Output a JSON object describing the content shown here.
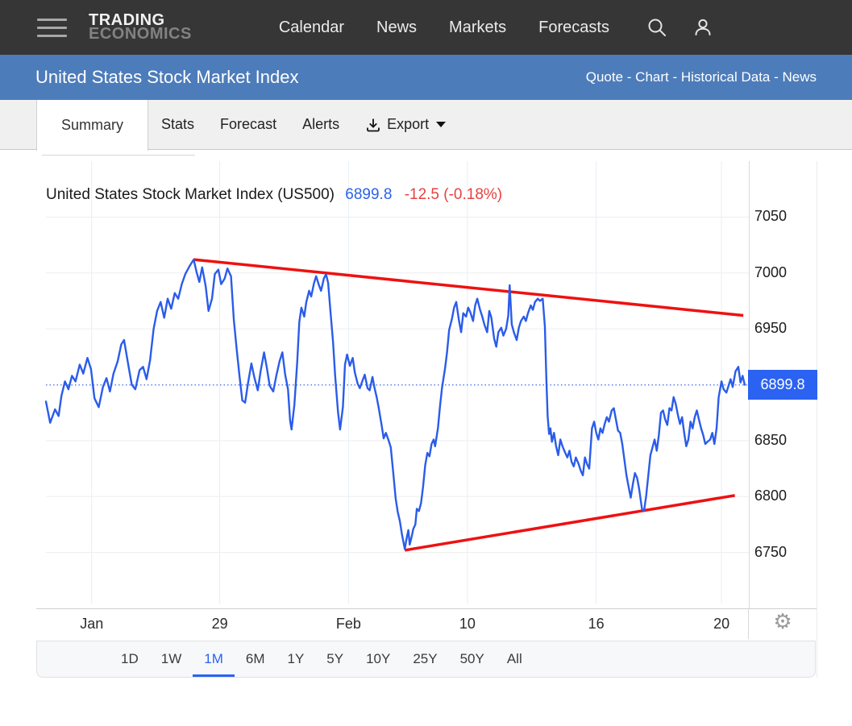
{
  "topbar": {
    "logo_line1": "TRADING",
    "logo_line2": "ECONOMICS",
    "nav_items": [
      "Calendar",
      "News",
      "Markets",
      "Forecasts"
    ]
  },
  "titlebar": {
    "title": "United States Stock Market Index",
    "links": "Quote - Chart - Historical Data - News"
  },
  "tabs": {
    "items": [
      "Summary",
      "Stats",
      "Forecast",
      "Alerts"
    ],
    "active": "Summary",
    "export_label": "Export"
  },
  "chart_header": {
    "name": "United States Stock Market Index (US500)",
    "price": "6899.8",
    "change": "-12.5 (-0.18%)"
  },
  "price_badge": "6899.8",
  "ranges": {
    "items": [
      "1D",
      "1W",
      "1M",
      "6M",
      "1Y",
      "5Y",
      "10Y",
      "25Y",
      "50Y",
      "All"
    ],
    "active": "1M"
  },
  "colors": {
    "line_blue": "#2a5cea",
    "badge_blue": "#2b62f2",
    "trend_red": "#ee1111",
    "dotted_blue": "#3f66ea",
    "grid_h": "#ededed",
    "grid_v": "#e7eef5",
    "plot_border": "#d9d9d9"
  },
  "chart_data": {
    "type": "line",
    "title": "United States Stock Market Index (US500)",
    "last_price": 6899.8,
    "change": -12.5,
    "change_pct": "-0.18%",
    "ylim": [
      6700,
      7100
    ],
    "y_ticks": [
      7050,
      7000,
      6950,
      6850,
      6800,
      6750
    ],
    "current_value_line": 6899.8,
    "grid": true,
    "legend": "none",
    "x_ticks": [
      {
        "label": "Jan",
        "f": 0.065
      },
      {
        "label": "29",
        "f": 0.247
      },
      {
        "label": "Feb",
        "f": 0.43
      },
      {
        "label": "10",
        "f": 0.599
      },
      {
        "label": "16",
        "f": 0.782
      },
      {
        "label": "20",
        "f": 0.96
      }
    ],
    "trendlines": [
      {
        "x1": 0.21,
        "v1": 7012,
        "x2": 0.991,
        "v2": 6962
      },
      {
        "x1": 0.51,
        "v1": 6752,
        "x2": 0.979,
        "v2": 6801
      }
    ],
    "series": [
      {
        "name": "US500",
        "points": [
          [
            0,
            6885
          ],
          [
            0.006,
            6866
          ],
          [
            0.013,
            6878
          ],
          [
            0.018,
            6872
          ],
          [
            0.022,
            6890
          ],
          [
            0.027,
            6903
          ],
          [
            0.032,
            6896
          ],
          [
            0.037,
            6908
          ],
          [
            0.042,
            6903
          ],
          [
            0.048,
            6918
          ],
          [
            0.053,
            6910
          ],
          [
            0.059,
            6924
          ],
          [
            0.064,
            6914
          ],
          [
            0.069,
            6888
          ],
          [
            0.075,
            6880
          ],
          [
            0.081,
            6898
          ],
          [
            0.086,
            6906
          ],
          [
            0.091,
            6894
          ],
          [
            0.096,
            6910
          ],
          [
            0.102,
            6921
          ],
          [
            0.107,
            6936
          ],
          [
            0.111,
            6940
          ],
          [
            0.117,
            6918
          ],
          [
            0.122,
            6900
          ],
          [
            0.127,
            6896
          ],
          [
            0.133,
            6913
          ],
          [
            0.138,
            6916
          ],
          [
            0.143,
            6905
          ],
          [
            0.148,
            6922
          ],
          [
            0.153,
            6950
          ],
          [
            0.158,
            6966
          ],
          [
            0.163,
            6974
          ],
          [
            0.168,
            6960
          ],
          [
            0.173,
            6977
          ],
          [
            0.178,
            6968
          ],
          [
            0.183,
            6982
          ],
          [
            0.188,
            6977
          ],
          [
            0.193,
            6990
          ],
          [
            0.198,
            6999
          ],
          [
            0.204,
            7006
          ],
          [
            0.21,
            7012
          ],
          [
            0.214,
            7001
          ],
          [
            0.218,
            6992
          ],
          [
            0.222,
            7005
          ],
          [
            0.227,
            6988
          ],
          [
            0.231,
            6966
          ],
          [
            0.236,
            6977
          ],
          [
            0.24,
            6999
          ],
          [
            0.245,
            7003
          ],
          [
            0.249,
            6990
          ],
          [
            0.254,
            6995
          ],
          [
            0.258,
            7004
          ],
          [
            0.263,
            6997
          ],
          [
            0.267,
            6958
          ],
          [
            0.271,
            6932
          ],
          [
            0.275,
            6908
          ],
          [
            0.279,
            6886
          ],
          [
            0.283,
            6884
          ],
          [
            0.287,
            6901
          ],
          [
            0.292,
            6919
          ],
          [
            0.296,
            6907
          ],
          [
            0.301,
            6895
          ],
          [
            0.305,
            6912
          ],
          [
            0.31,
            6929
          ],
          [
            0.314,
            6915
          ],
          [
            0.318,
            6899
          ],
          [
            0.323,
            6894
          ],
          [
            0.327,
            6907
          ],
          [
            0.332,
            6921
          ],
          [
            0.336,
            6929
          ],
          [
            0.34,
            6909
          ],
          [
            0.344,
            6896
          ],
          [
            0.347,
            6868
          ],
          [
            0.349,
            6860
          ],
          [
            0.353,
            6882
          ],
          [
            0.357,
            6920
          ],
          [
            0.36,
            6956
          ],
          [
            0.363,
            6969
          ],
          [
            0.367,
            6961
          ],
          [
            0.37,
            6974
          ],
          [
            0.374,
            6984
          ],
          [
            0.377,
            6979
          ],
          [
            0.381,
            6991
          ],
          [
            0.384,
            6997
          ],
          [
            0.388,
            6989
          ],
          [
            0.391,
            6984
          ],
          [
            0.395,
            6995
          ],
          [
            0.398,
            6999
          ],
          [
            0.401,
            6991
          ],
          [
            0.404,
            6968
          ],
          [
            0.408,
            6938
          ],
          [
            0.411,
            6908
          ],
          [
            0.415,
            6876
          ],
          [
            0.418,
            6860
          ],
          [
            0.422,
            6880
          ],
          [
            0.425,
            6918
          ],
          [
            0.428,
            6927
          ],
          [
            0.432,
            6917
          ],
          [
            0.436,
            6924
          ],
          [
            0.439,
            6911
          ],
          [
            0.443,
            6901
          ],
          [
            0.446,
            6897
          ],
          [
            0.45,
            6904
          ],
          [
            0.453,
            6909
          ],
          [
            0.457,
            6897
          ],
          [
            0.46,
            6895
          ],
          [
            0.464,
            6907
          ],
          [
            0.467,
            6897
          ],
          [
            0.47,
            6889
          ],
          [
            0.473,
            6879
          ],
          [
            0.477,
            6864
          ],
          [
            0.48,
            6852
          ],
          [
            0.483,
            6857
          ],
          [
            0.487,
            6850
          ],
          [
            0.49,
            6844
          ],
          [
            0.494,
            6818
          ],
          [
            0.497,
            6798
          ],
          [
            0.5,
            6786
          ],
          [
            0.503,
            6778
          ],
          [
            0.506,
            6766
          ],
          [
            0.51,
            6753
          ],
          [
            0.512,
            6761
          ],
          [
            0.515,
            6770
          ],
          [
            0.517,
            6757
          ],
          [
            0.52,
            6765
          ],
          [
            0.522,
            6771
          ],
          [
            0.525,
            6775
          ],
          [
            0.527,
            6789
          ],
          [
            0.53,
            6787
          ],
          [
            0.533,
            6794
          ],
          [
            0.536,
            6809
          ],
          [
            0.539,
            6828
          ],
          [
            0.542,
            6839
          ],
          [
            0.545,
            6836
          ],
          [
            0.548,
            6847
          ],
          [
            0.551,
            6851
          ],
          [
            0.553,
            6845
          ],
          [
            0.557,
            6861
          ],
          [
            0.56,
            6881
          ],
          [
            0.563,
            6898
          ],
          [
            0.567,
            6914
          ],
          [
            0.57,
            6929
          ],
          [
            0.573,
            6949
          ],
          [
            0.577,
            6959
          ],
          [
            0.58,
            6969
          ],
          [
            0.583,
            6974
          ],
          [
            0.587,
            6957
          ],
          [
            0.59,
            6947
          ],
          [
            0.593,
            6964
          ],
          [
            0.597,
            6961
          ],
          [
            0.6,
            6969
          ],
          [
            0.603,
            6965
          ],
          [
            0.607,
            6957
          ],
          [
            0.61,
            6971
          ],
          [
            0.613,
            6977
          ],
          [
            0.617,
            6967
          ],
          [
            0.62,
            6961
          ],
          [
            0.623,
            6954
          ],
          [
            0.627,
            6947
          ],
          [
            0.63,
            6966
          ],
          [
            0.633,
            6960
          ],
          [
            0.637,
            6941
          ],
          [
            0.64,
            6934
          ],
          [
            0.643,
            6947
          ],
          [
            0.647,
            6951
          ],
          [
            0.65,
            6944
          ],
          [
            0.654,
            6950
          ],
          [
            0.657,
            6962
          ],
          [
            0.659,
            6989
          ],
          [
            0.662,
            6954
          ],
          [
            0.665,
            6947
          ],
          [
            0.669,
            6940
          ],
          [
            0.672,
            6951
          ],
          [
            0.675,
            6957
          ],
          [
            0.679,
            6961
          ],
          [
            0.682,
            6957
          ],
          [
            0.685,
            6964
          ],
          [
            0.689,
            6971
          ],
          [
            0.692,
            6967
          ],
          [
            0.695,
            6974
          ],
          [
            0.699,
            6977
          ],
          [
            0.702,
            6975
          ],
          [
            0.706,
            6977
          ],
          [
            0.709,
            6952
          ],
          [
            0.711,
            6908
          ],
          [
            0.713,
            6872
          ],
          [
            0.715,
            6856
          ],
          [
            0.717,
            6861
          ],
          [
            0.719,
            6849
          ],
          [
            0.722,
            6857
          ],
          [
            0.725,
            6845
          ],
          [
            0.728,
            6837
          ],
          [
            0.731,
            6851
          ],
          [
            0.734,
            6845
          ],
          [
            0.738,
            6839
          ],
          [
            0.741,
            6835
          ],
          [
            0.744,
            6841
          ],
          [
            0.747,
            6831
          ],
          [
            0.75,
            6827
          ],
          [
            0.753,
            6835
          ],
          [
            0.757,
            6829
          ],
          [
            0.76,
            6823
          ],
          [
            0.763,
            6819
          ],
          [
            0.766,
            6835
          ],
          [
            0.769,
            6829
          ],
          [
            0.772,
            6825
          ],
          [
            0.776,
            6861
          ],
          [
            0.779,
            6867
          ],
          [
            0.782,
            6857
          ],
          [
            0.785,
            6851
          ],
          [
            0.788,
            6861
          ],
          [
            0.791,
            6857
          ],
          [
            0.794,
            6865
          ],
          [
            0.797,
            6871
          ],
          [
            0.8,
            6867
          ],
          [
            0.804,
            6877
          ],
          [
            0.807,
            6879
          ],
          [
            0.81,
            6869
          ],
          [
            0.813,
            6859
          ],
          [
            0.816,
            6857
          ],
          [
            0.819,
            6847
          ],
          [
            0.822,
            6833
          ],
          [
            0.825,
            6819
          ],
          [
            0.828,
            6809
          ],
          [
            0.831,
            6799
          ],
          [
            0.834,
            6811
          ],
          [
            0.837,
            6821
          ],
          [
            0.84,
            6817
          ],
          [
            0.843,
            6807
          ],
          [
            0.847,
            6789
          ],
          [
            0.85,
            6787
          ],
          [
            0.853,
            6801
          ],
          [
            0.856,
            6819
          ],
          [
            0.859,
            6837
          ],
          [
            0.862,
            6844
          ],
          [
            0.865,
            6851
          ],
          [
            0.868,
            6841
          ],
          [
            0.871,
            6855
          ],
          [
            0.874,
            6875
          ],
          [
            0.877,
            6877
          ],
          [
            0.88,
            6869
          ],
          [
            0.883,
            6864
          ],
          [
            0.886,
            6879
          ],
          [
            0.889,
            6877
          ],
          [
            0.892,
            6889
          ],
          [
            0.895,
            6883
          ],
          [
            0.898,
            6873
          ],
          [
            0.901,
            6865
          ],
          [
            0.904,
            6871
          ],
          [
            0.907,
            6857
          ],
          [
            0.91,
            6845
          ],
          [
            0.913,
            6851
          ],
          [
            0.916,
            6867
          ],
          [
            0.919,
            6861
          ],
          [
            0.922,
            6871
          ],
          [
            0.925,
            6877
          ],
          [
            0.928,
            6869
          ],
          [
            0.931,
            6861
          ],
          [
            0.934,
            6855
          ],
          [
            0.937,
            6847
          ],
          [
            0.94,
            6849
          ],
          [
            0.944,
            6851
          ],
          [
            0.947,
            6857
          ],
          [
            0.95,
            6847
          ],
          [
            0.953,
            6861
          ],
          [
            0.956,
            6889
          ],
          [
            0.96,
            6903
          ],
          [
            0.963,
            6896
          ],
          [
            0.967,
            6893
          ],
          [
            0.97,
            6899
          ],
          [
            0.973,
            6905
          ],
          [
            0.976,
            6898
          ],
          [
            0.98,
            6912
          ],
          [
            0.984,
            6916
          ],
          [
            0.987,
            6902
          ],
          [
            0.99,
            6908
          ],
          [
            0.993,
            6900
          ]
        ]
      }
    ]
  }
}
